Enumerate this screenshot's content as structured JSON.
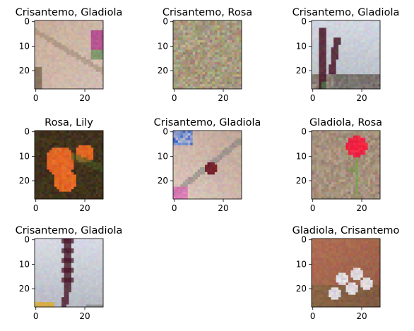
{
  "chart_data": [
    {
      "type": "image",
      "title": "Crisantemo, Gladiola",
      "xticks": [
        0,
        20
      ],
      "yticks": [
        0,
        10,
        20
      ],
      "scene": "sand-magenta"
    },
    {
      "type": "image",
      "title": "Crisantemo, Rosa",
      "xticks": [
        0,
        20
      ],
      "yticks": [
        0,
        10,
        20
      ],
      "scene": "gravel"
    },
    {
      "type": "image",
      "title": "Crisantemo, Gladiola",
      "xticks": [
        0,
        20
      ],
      "yticks": [
        0,
        10,
        20
      ],
      "scene": "sky-stalk"
    },
    {
      "type": "image",
      "title": "Rosa, Lily",
      "xticks": [
        0,
        20
      ],
      "yticks": [
        0,
        10,
        20
      ],
      "scene": "orange-lily"
    },
    {
      "type": "image",
      "title": "Crisantemo, Gladiola",
      "xticks": [
        0,
        20
      ],
      "yticks": [
        0,
        10,
        20
      ],
      "scene": "blue-debris"
    },
    {
      "type": "image",
      "title": "Gladiola, Rosa",
      "xticks": [
        0,
        20
      ],
      "yticks": [
        0,
        10,
        20
      ],
      "scene": "red-rose"
    },
    {
      "type": "image",
      "title": "Crisantemo, Gladiola",
      "xticks": [
        0,
        20
      ],
      "yticks": [
        0,
        10,
        20
      ],
      "scene": "sky-gladiola"
    },
    {
      "type": "image",
      "title": "Gladiola, Crisantemo",
      "xticks": [
        0,
        20
      ],
      "yticks": [
        0,
        10,
        20
      ],
      "scene": "white-flowers"
    }
  ],
  "colors": {
    "sand": "#c9ae9a",
    "gravel": "#9a8a6e",
    "sky": "#b6bac2",
    "dark_bg": "#3a2c1c",
    "orange": "#e06020",
    "rose_red": "#e8203e",
    "stalk": "#4a1828",
    "white_petal": "#e8e4e6",
    "terracotta": "#b07054",
    "magenta": "#b03a8a"
  }
}
